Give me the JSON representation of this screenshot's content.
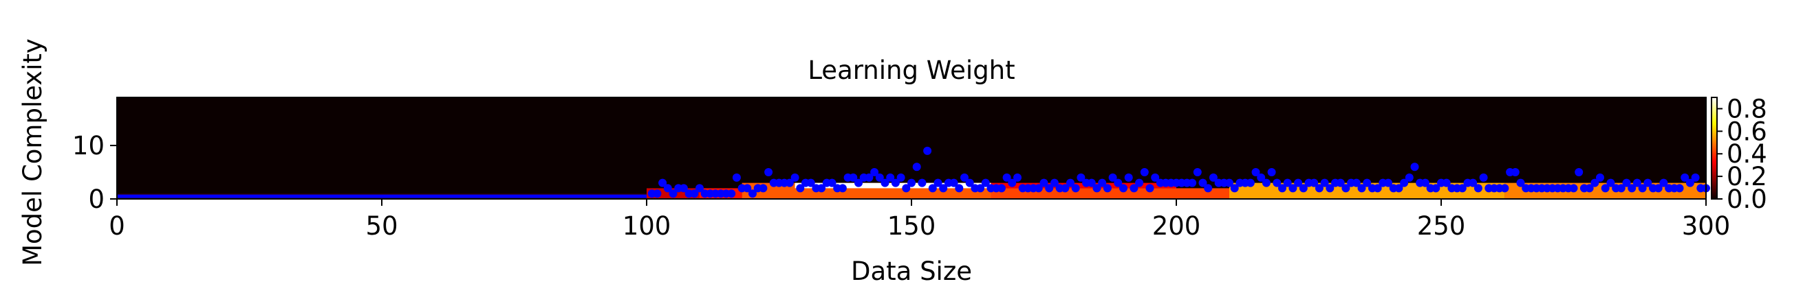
{
  "chart_data": {
    "type": "heatmap",
    "title": "Learning Weight",
    "xlabel": "Data Size",
    "ylabel": "Model Complexity",
    "xlim": [
      0,
      300
    ],
    "ylim": [
      0,
      19
    ],
    "x_ticks": [
      "0",
      "50",
      "100",
      "150",
      "200",
      "250",
      "300"
    ],
    "y_ticks": [
      "0",
      "10"
    ],
    "colorbar": {
      "colormap": "hot",
      "range": [
        0.0,
        0.9
      ],
      "ticks": [
        "0.0",
        "0.2",
        "0.4",
        "0.6",
        "0.8"
      ]
    },
    "heatmap_background_value": 0.0,
    "heatmap_bands": [
      {
        "x": [
          0,
          100
        ],
        "y": [
          0,
          1
        ],
        "value": 0.05
      },
      {
        "x": [
          100,
          110
        ],
        "y": [
          0,
          2
        ],
        "value": 0.25
      },
      {
        "x": [
          110,
          118
        ],
        "y": [
          0,
          2
        ],
        "value": 0.35
      },
      {
        "x": [
          118,
          165
        ],
        "y": [
          0,
          3
        ],
        "value": 0.45
      },
      {
        "x": [
          128,
          165
        ],
        "y": [
          2,
          3
        ],
        "value": 0.9
      },
      {
        "x": [
          165,
          210
        ],
        "y": [
          0,
          2
        ],
        "value": 0.42
      },
      {
        "x": [
          165,
          200
        ],
        "y": [
          2,
          3
        ],
        "value": 0.3
      },
      {
        "x": [
          210,
          262
        ],
        "y": [
          0,
          3
        ],
        "value": 0.55
      },
      {
        "x": [
          262,
          300
        ],
        "y": [
          0,
          3
        ],
        "value": 0.5
      }
    ],
    "series": [
      {
        "type": "scatter",
        "color": "#0000ff",
        "points": [
          [
            101,
            1
          ],
          [
            102,
            1
          ],
          [
            103,
            3
          ],
          [
            104,
            2
          ],
          [
            105,
            1
          ],
          [
            106,
            2
          ],
          [
            107,
            2
          ],
          [
            108,
            1
          ],
          [
            109,
            1
          ],
          [
            110,
            2
          ],
          [
            111,
            1
          ],
          [
            112,
            1
          ],
          [
            113,
            1
          ],
          [
            114,
            1
          ],
          [
            115,
            1
          ],
          [
            116,
            1
          ],
          [
            117,
            4
          ],
          [
            118,
            2
          ],
          [
            119,
            2
          ],
          [
            120,
            1
          ],
          [
            121,
            2
          ],
          [
            122,
            2
          ],
          [
            123,
            5
          ],
          [
            124,
            3
          ],
          [
            125,
            3
          ],
          [
            126,
            3
          ],
          [
            127,
            3
          ],
          [
            128,
            4
          ],
          [
            129,
            2
          ],
          [
            130,
            3
          ],
          [
            131,
            3
          ],
          [
            132,
            2
          ],
          [
            133,
            2
          ],
          [
            134,
            3
          ],
          [
            135,
            3
          ],
          [
            136,
            2
          ],
          [
            137,
            2
          ],
          [
            138,
            4
          ],
          [
            139,
            4
          ],
          [
            140,
            3
          ],
          [
            141,
            4
          ],
          [
            142,
            4
          ],
          [
            143,
            5
          ],
          [
            144,
            4
          ],
          [
            145,
            3
          ],
          [
            146,
            4
          ],
          [
            147,
            3
          ],
          [
            148,
            4
          ],
          [
            149,
            2
          ],
          [
            150,
            3
          ],
          [
            151,
            6
          ],
          [
            152,
            3
          ],
          [
            153,
            9
          ],
          [
            154,
            2
          ],
          [
            155,
            3
          ],
          [
            156,
            2
          ],
          [
            157,
            3
          ],
          [
            158,
            3
          ],
          [
            159,
            2
          ],
          [
            160,
            4
          ],
          [
            161,
            3
          ],
          [
            162,
            2
          ],
          [
            163,
            2
          ],
          [
            164,
            3
          ],
          [
            165,
            2
          ],
          [
            166,
            2
          ],
          [
            167,
            2
          ],
          [
            168,
            4
          ],
          [
            169,
            3
          ],
          [
            170,
            4
          ],
          [
            171,
            2
          ],
          [
            172,
            2
          ],
          [
            173,
            2
          ],
          [
            174,
            2
          ],
          [
            175,
            3
          ],
          [
            176,
            2
          ],
          [
            177,
            3
          ],
          [
            178,
            2
          ],
          [
            179,
            2
          ],
          [
            180,
            3
          ],
          [
            181,
            2
          ],
          [
            182,
            4
          ],
          [
            183,
            3
          ],
          [
            184,
            3
          ],
          [
            185,
            2
          ],
          [
            186,
            3
          ],
          [
            187,
            2
          ],
          [
            188,
            4
          ],
          [
            189,
            3
          ],
          [
            190,
            2
          ],
          [
            191,
            4
          ],
          [
            192,
            2
          ],
          [
            193,
            3
          ],
          [
            194,
            5
          ],
          [
            195,
            2
          ],
          [
            196,
            4
          ],
          [
            197,
            3
          ],
          [
            198,
            3
          ],
          [
            199,
            3
          ],
          [
            200,
            3
          ],
          [
            201,
            3
          ],
          [
            202,
            3
          ],
          [
            203,
            3
          ],
          [
            204,
            5
          ],
          [
            205,
            3
          ],
          [
            206,
            2
          ],
          [
            207,
            4
          ],
          [
            208,
            3
          ],
          [
            209,
            3
          ],
          [
            210,
            3
          ],
          [
            211,
            2
          ],
          [
            212,
            3
          ],
          [
            213,
            3
          ],
          [
            214,
            3
          ],
          [
            215,
            5
          ],
          [
            216,
            4
          ],
          [
            217,
            3
          ],
          [
            218,
            5
          ],
          [
            219,
            3
          ],
          [
            220,
            2
          ],
          [
            221,
            3
          ],
          [
            222,
            2
          ],
          [
            223,
            3
          ],
          [
            224,
            2
          ],
          [
            225,
            3
          ],
          [
            226,
            3
          ],
          [
            227,
            2
          ],
          [
            228,
            3
          ],
          [
            229,
            2
          ],
          [
            230,
            3
          ],
          [
            231,
            3
          ],
          [
            232,
            2
          ],
          [
            233,
            3
          ],
          [
            234,
            3
          ],
          [
            235,
            2
          ],
          [
            236,
            3
          ],
          [
            237,
            2
          ],
          [
            238,
            2
          ],
          [
            239,
            3
          ],
          [
            240,
            3
          ],
          [
            241,
            2
          ],
          [
            242,
            2
          ],
          [
            243,
            3
          ],
          [
            244,
            4
          ],
          [
            245,
            6
          ],
          [
            246,
            3
          ],
          [
            247,
            3
          ],
          [
            248,
            2
          ],
          [
            249,
            2
          ],
          [
            250,
            3
          ],
          [
            251,
            3
          ],
          [
            252,
            2
          ],
          [
            253,
            2
          ],
          [
            254,
            2
          ],
          [
            255,
            3
          ],
          [
            256,
            3
          ],
          [
            257,
            2
          ],
          [
            258,
            4
          ],
          [
            259,
            2
          ],
          [
            260,
            2
          ],
          [
            261,
            2
          ],
          [
            262,
            2
          ],
          [
            263,
            5
          ],
          [
            264,
            5
          ],
          [
            265,
            3
          ],
          [
            266,
            2
          ],
          [
            267,
            2
          ],
          [
            268,
            2
          ],
          [
            269,
            2
          ],
          [
            270,
            2
          ],
          [
            271,
            2
          ],
          [
            272,
            2
          ],
          [
            273,
            2
          ],
          [
            274,
            2
          ],
          [
            275,
            2
          ],
          [
            276,
            5
          ],
          [
            277,
            2
          ],
          [
            278,
            2
          ],
          [
            279,
            3
          ],
          [
            280,
            4
          ],
          [
            281,
            2
          ],
          [
            282,
            3
          ],
          [
            283,
            2
          ],
          [
            284,
            2
          ],
          [
            285,
            3
          ],
          [
            286,
            2
          ],
          [
            287,
            3
          ],
          [
            288,
            2
          ],
          [
            289,
            3
          ],
          [
            290,
            2
          ],
          [
            291,
            2
          ],
          [
            292,
            3
          ],
          [
            293,
            2
          ],
          [
            294,
            2
          ],
          [
            295,
            2
          ],
          [
            296,
            4
          ],
          [
            297,
            3
          ],
          [
            298,
            4
          ],
          [
            299,
            2
          ],
          [
            300,
            2
          ]
        ]
      },
      {
        "type": "line",
        "color": "#0000ff",
        "points": [
          [
            0,
            0.5
          ],
          [
            100,
            0.5
          ]
        ]
      }
    ]
  }
}
